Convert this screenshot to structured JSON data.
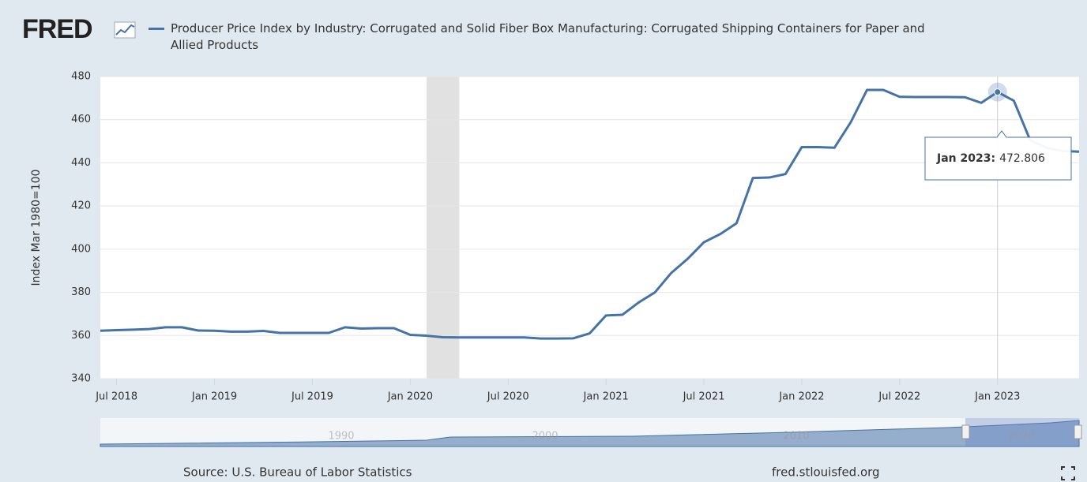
{
  "logo": "FRED",
  "chart_data": {
    "type": "line",
    "y_label": "Index Mar 1980=100",
    "x": [
      "2018-06",
      "2018-07",
      "2018-08",
      "2018-09",
      "2018-10",
      "2018-11",
      "2018-12",
      "2019-01",
      "2019-02",
      "2019-03",
      "2019-04",
      "2019-05",
      "2019-06",
      "2019-07",
      "2019-08",
      "2019-09",
      "2019-10",
      "2019-11",
      "2019-12",
      "2020-01",
      "2020-02",
      "2020-03",
      "2020-04",
      "2020-05",
      "2020-06",
      "2020-07",
      "2020-08",
      "2020-09",
      "2020-10",
      "2020-11",
      "2020-12",
      "2021-01",
      "2021-02",
      "2021-03",
      "2021-04",
      "2021-05",
      "2021-06",
      "2021-07",
      "2021-08",
      "2021-09",
      "2021-10",
      "2021-11",
      "2021-12",
      "2022-01",
      "2022-02",
      "2022-03",
      "2022-04",
      "2022-05",
      "2022-06",
      "2022-07",
      "2022-08",
      "2022-09",
      "2022-10",
      "2022-11",
      "2022-12",
      "2023-01",
      "2023-02",
      "2023-03",
      "2023-04",
      "2023-05",
      "2023-06"
    ],
    "series": [
      {
        "name": "Producer Price Index by Industry: Corrugated and Solid Fiber Box Manufacturing: Corrugated Shipping Containers for Paper and Allied Products",
        "color": "#4572a7",
        "values": [
          362.2,
          362.5,
          362.7,
          363.0,
          363.8,
          363.8,
          362.3,
          362.2,
          361.8,
          361.8,
          362.1,
          361.2,
          361.2,
          361.2,
          361.2,
          363.8,
          363.2,
          363.4,
          363.4,
          360.3,
          359.9,
          359.2,
          359.1,
          359.1,
          359.1,
          359.1,
          359.1,
          358.6,
          358.6,
          358.7,
          361.0,
          369.3,
          369.6,
          375.3,
          380.0,
          389.0,
          395.5,
          403.2,
          407.0,
          412.0,
          433.0,
          433.2,
          434.8,
          447.3,
          447.3,
          447.0,
          458.8,
          473.8,
          473.8,
          470.6,
          470.5,
          470.5,
          470.5,
          470.4,
          467.8,
          472.806,
          468.8,
          450.5,
          447.0,
          445.5,
          445.2
        ]
      }
    ],
    "xlim": [
      "2018-06",
      "2023-06"
    ],
    "xticks": [
      {
        "value": "2018-07",
        "label": "Jul 2018"
      },
      {
        "value": "2019-01",
        "label": "Jan 2019"
      },
      {
        "value": "2019-07",
        "label": "Jul 2019"
      },
      {
        "value": "2020-01",
        "label": "Jan 2020"
      },
      {
        "value": "2020-07",
        "label": "Jul 2020"
      },
      {
        "value": "2021-01",
        "label": "Jan 2021"
      },
      {
        "value": "2021-07",
        "label": "Jul 2021"
      },
      {
        "value": "2022-01",
        "label": "Jan 2022"
      },
      {
        "value": "2022-07",
        "label": "Jul 2022"
      },
      {
        "value": "2023-01",
        "label": "Jan 2023"
      }
    ],
    "ylim": [
      340,
      480
    ],
    "yticks": [
      340,
      360,
      380,
      400,
      420,
      440,
      460,
      480
    ],
    "grid": true,
    "shaded_period": [
      "2020-02",
      "2020-04"
    ],
    "tooltip": {
      "x": "2023-01",
      "label": "Jan 2023:"
    },
    "navigator_labels": [
      "1990",
      "2000",
      "2010",
      "2020"
    ],
    "source": "Source: U.S. Bureau of Labor Statistics",
    "site": "fred.stlouisfed.org"
  }
}
